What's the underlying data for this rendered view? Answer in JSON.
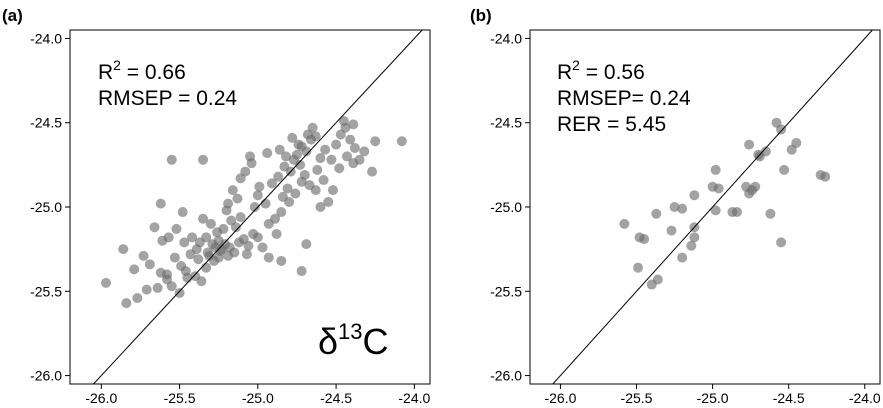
{
  "chart_data": [
    {
      "type": "scatter",
      "panel_label": "(a)",
      "stats": [
        {
          "prefix": "R",
          "sup": "2",
          "suffix": " = 0.66"
        },
        {
          "prefix": "RMSEP = 0.24",
          "sup": "",
          "suffix": ""
        }
      ],
      "isotope": {
        "symbol": "δ",
        "sup": "13",
        "element": "C"
      },
      "xlim": [
        -26.2,
        -23.9
      ],
      "ylim": [
        -26.05,
        -23.95
      ],
      "xticks": [
        -26.0,
        -25.5,
        -25.0,
        -24.5,
        -24.0
      ],
      "xtick_labels": [
        "-26.0",
        "-25.5",
        "-25.0",
        "-24.5",
        "-24.0"
      ],
      "yticks": [
        -24.0,
        -24.5,
        -25.0,
        -25.5,
        -26.0
      ],
      "ytick_labels": [
        "-24.0",
        "-24.5",
        "-25.0",
        "-25.5",
        "-26.0"
      ],
      "reference_line": "1:1",
      "point_color": "#6b6b6b",
      "points": [
        [
          -25.97,
          -25.45
        ],
        [
          -25.84,
          -25.57
        ],
        [
          -25.86,
          -25.25
        ],
        [
          -25.79,
          -25.37
        ],
        [
          -25.73,
          -25.29
        ],
        [
          -25.69,
          -25.34
        ],
        [
          -25.62,
          -25.39
        ],
        [
          -25.58,
          -25.43
        ],
        [
          -25.55,
          -25.47
        ],
        [
          -25.61,
          -25.2
        ],
        [
          -25.57,
          -25.18
        ],
        [
          -25.53,
          -25.3
        ],
        [
          -25.49,
          -25.35
        ],
        [
          -25.45,
          -25.42
        ],
        [
          -25.4,
          -25.41
        ],
        [
          -25.36,
          -25.44
        ],
        [
          -25.33,
          -25.36
        ],
        [
          -25.31,
          -25.29
        ],
        [
          -25.28,
          -25.32
        ],
        [
          -25.24,
          -25.26
        ],
        [
          -25.21,
          -25.22
        ],
        [
          -25.18,
          -25.24
        ],
        [
          -25.15,
          -25.27
        ],
        [
          -25.12,
          -25.21
        ],
        [
          -25.09,
          -25.19
        ],
        [
          -25.06,
          -25.23
        ],
        [
          -25.03,
          -25.16
        ],
        [
          -25.0,
          -25.18
        ],
        [
          -24.97,
          -25.24
        ],
        [
          -25.35,
          -25.07
        ],
        [
          -25.3,
          -25.1
        ],
        [
          -25.26,
          -25.15
        ],
        [
          -25.22,
          -25.13
        ],
        [
          -25.39,
          -25.25
        ],
        [
          -25.43,
          -25.28
        ],
        [
          -25.47,
          -25.21
        ],
        [
          -25.52,
          -25.13
        ],
        [
          -25.48,
          -25.03
        ],
        [
          -25.55,
          -24.72
        ],
        [
          -25.35,
          -24.72
        ],
        [
          -25.62,
          -24.98
        ],
        [
          -25.66,
          -25.12
        ],
        [
          -25.19,
          -24.98
        ],
        [
          -25.13,
          -24.95
        ],
        [
          -25.08,
          -24.79
        ],
        [
          -25.04,
          -24.74
        ],
        [
          -25.0,
          -24.93
        ],
        [
          -24.95,
          -24.98
        ],
        [
          -24.91,
          -24.86
        ],
        [
          -24.87,
          -24.82
        ],
        [
          -24.83,
          -24.76
        ],
        [
          -24.79,
          -24.79
        ],
        [
          -24.75,
          -24.69
        ],
        [
          -24.72,
          -24.64
        ],
        [
          -24.69,
          -24.67
        ],
        [
          -24.66,
          -24.6
        ],
        [
          -24.63,
          -24.58
        ],
        [
          -24.6,
          -24.71
        ],
        [
          -24.57,
          -24.66
        ],
        [
          -24.53,
          -24.72
        ],
        [
          -24.5,
          -24.63
        ],
        [
          -24.47,
          -24.57
        ],
        [
          -24.44,
          -24.53
        ],
        [
          -24.41,
          -24.6
        ],
        [
          -24.38,
          -24.65
        ],
        [
          -24.35,
          -24.72
        ],
        [
          -24.32,
          -24.67
        ],
        [
          -24.27,
          -24.79
        ],
        [
          -24.25,
          -24.61
        ],
        [
          -24.08,
          -24.61
        ],
        [
          -24.39,
          -24.51
        ],
        [
          -24.45,
          -24.49
        ],
        [
          -24.65,
          -24.53
        ],
        [
          -24.68,
          -24.57
        ],
        [
          -24.72,
          -24.85
        ],
        [
          -24.76,
          -24.92
        ],
        [
          -24.8,
          -24.97
        ],
        [
          -24.85,
          -25.03
        ],
        [
          -24.89,
          -25.07
        ],
        [
          -24.93,
          -25.1
        ],
        [
          -24.55,
          -24.97
        ],
        [
          -24.6,
          -25.0
        ],
        [
          -24.63,
          -24.9
        ],
        [
          -24.67,
          -24.87
        ],
        [
          -24.7,
          -24.81
        ],
        [
          -24.73,
          -24.75
        ],
        [
          -24.77,
          -24.72
        ],
        [
          -24.82,
          -24.7
        ],
        [
          -24.94,
          -24.68
        ],
        [
          -25.05,
          -24.7
        ],
        [
          -25.11,
          -24.83
        ],
        [
          -25.16,
          -24.9
        ],
        [
          -25.2,
          -25.02
        ],
        [
          -24.69,
          -25.22
        ],
        [
          -24.72,
          -25.38
        ],
        [
          -24.85,
          -25.32
        ],
        [
          -24.93,
          -25.3
        ],
        [
          -25.25,
          -25.3
        ],
        [
          -25.29,
          -25.22
        ],
        [
          -25.33,
          -25.18
        ],
        [
          -25.37,
          -25.21
        ],
        [
          -25.42,
          -25.18
        ],
        [
          -25.58,
          -25.4
        ],
        [
          -25.64,
          -25.48
        ],
        [
          -25.71,
          -25.49
        ],
        [
          -25.77,
          -25.54
        ],
        [
          -25.5,
          -25.51
        ],
        [
          -25.46,
          -25.38
        ],
        [
          -25.25,
          -25.2
        ],
        [
          -25.23,
          -25.25
        ],
        [
          -25.19,
          -25.29
        ],
        [
          -25.27,
          -25.24
        ],
        [
          -25.32,
          -25.27
        ],
        [
          -25.38,
          -25.31
        ],
        [
          -24.58,
          -24.84
        ],
        [
          -24.52,
          -24.9
        ],
        [
          -24.48,
          -24.77
        ],
        [
          -24.43,
          -24.7
        ],
        [
          -24.39,
          -24.74
        ],
        [
          -24.62,
          -24.78
        ],
        [
          -24.74,
          -24.63
        ],
        [
          -24.78,
          -24.59
        ],
        [
          -24.86,
          -24.66
        ],
        [
          -24.99,
          -24.88
        ],
        [
          -25.02,
          -25.0
        ],
        [
          -25.11,
          -25.06
        ],
        [
          -25.14,
          -25.12
        ],
        [
          -25.17,
          -25.08
        ],
        [
          -24.81,
          -24.89
        ],
        [
          -24.84,
          -24.94
        ],
        [
          -24.88,
          -25.16
        ],
        [
          -25.07,
          -25.28
        ]
      ]
    },
    {
      "type": "scatter",
      "panel_label": "(b)",
      "stats": [
        {
          "prefix": "R",
          "sup": "2",
          "suffix": " = 0.56"
        },
        {
          "prefix": "RMSEP= 0.24",
          "sup": "",
          "suffix": ""
        },
        {
          "prefix": "RER = 5.45",
          "sup": "",
          "suffix": ""
        }
      ],
      "xlim": [
        -26.2,
        -23.9
      ],
      "ylim": [
        -26.05,
        -23.95
      ],
      "xticks": [
        -26.0,
        -25.5,
        -25.0,
        -24.5,
        -24.0
      ],
      "xtick_labels": [
        "-26.0",
        "-25.5",
        "-25.0",
        "-24.5",
        "-24.0"
      ],
      "yticks": [
        -24.0,
        -24.5,
        -25.0,
        -25.5,
        -26.0
      ],
      "ytick_labels": [
        "-24.0",
        "-24.5",
        "-25.0",
        "-25.5",
        "-26.0"
      ],
      "reference_line": "1:1",
      "point_color": "#6b6b6b",
      "points": [
        [
          -25.58,
          -25.1
        ],
        [
          -25.48,
          -25.18
        ],
        [
          -25.45,
          -25.19
        ],
        [
          -25.49,
          -25.36
        ],
        [
          -25.4,
          -25.46
        ],
        [
          -25.36,
          -25.43
        ],
        [
          -25.37,
          -25.04
        ],
        [
          -25.27,
          -25.14
        ],
        [
          -25.25,
          -25.0
        ],
        [
          -25.2,
          -25.01
        ],
        [
          -25.2,
          -25.3
        ],
        [
          -25.14,
          -25.23
        ],
        [
          -25.12,
          -25.18
        ],
        [
          -25.12,
          -25.12
        ],
        [
          -25.12,
          -24.93
        ],
        [
          -25.0,
          -24.88
        ],
        [
          -24.98,
          -24.78
        ],
        [
          -24.96,
          -24.89
        ],
        [
          -24.98,
          -25.02
        ],
        [
          -24.87,
          -25.03
        ],
        [
          -24.84,
          -25.03
        ],
        [
          -24.78,
          -24.88
        ],
        [
          -24.76,
          -24.92
        ],
        [
          -24.74,
          -24.9
        ],
        [
          -24.72,
          -24.88
        ],
        [
          -24.76,
          -24.63
        ],
        [
          -24.7,
          -24.69
        ],
        [
          -24.65,
          -24.67
        ],
        [
          -24.62,
          -25.04
        ],
        [
          -24.58,
          -24.5
        ],
        [
          -24.55,
          -24.54
        ],
        [
          -24.48,
          -24.66
        ],
        [
          -24.45,
          -24.62
        ],
        [
          -24.53,
          -24.78
        ],
        [
          -24.29,
          -24.81
        ],
        [
          -24.26,
          -24.82
        ],
        [
          -24.55,
          -25.21
        ],
        [
          -24.69,
          -24.7
        ]
      ]
    }
  ]
}
